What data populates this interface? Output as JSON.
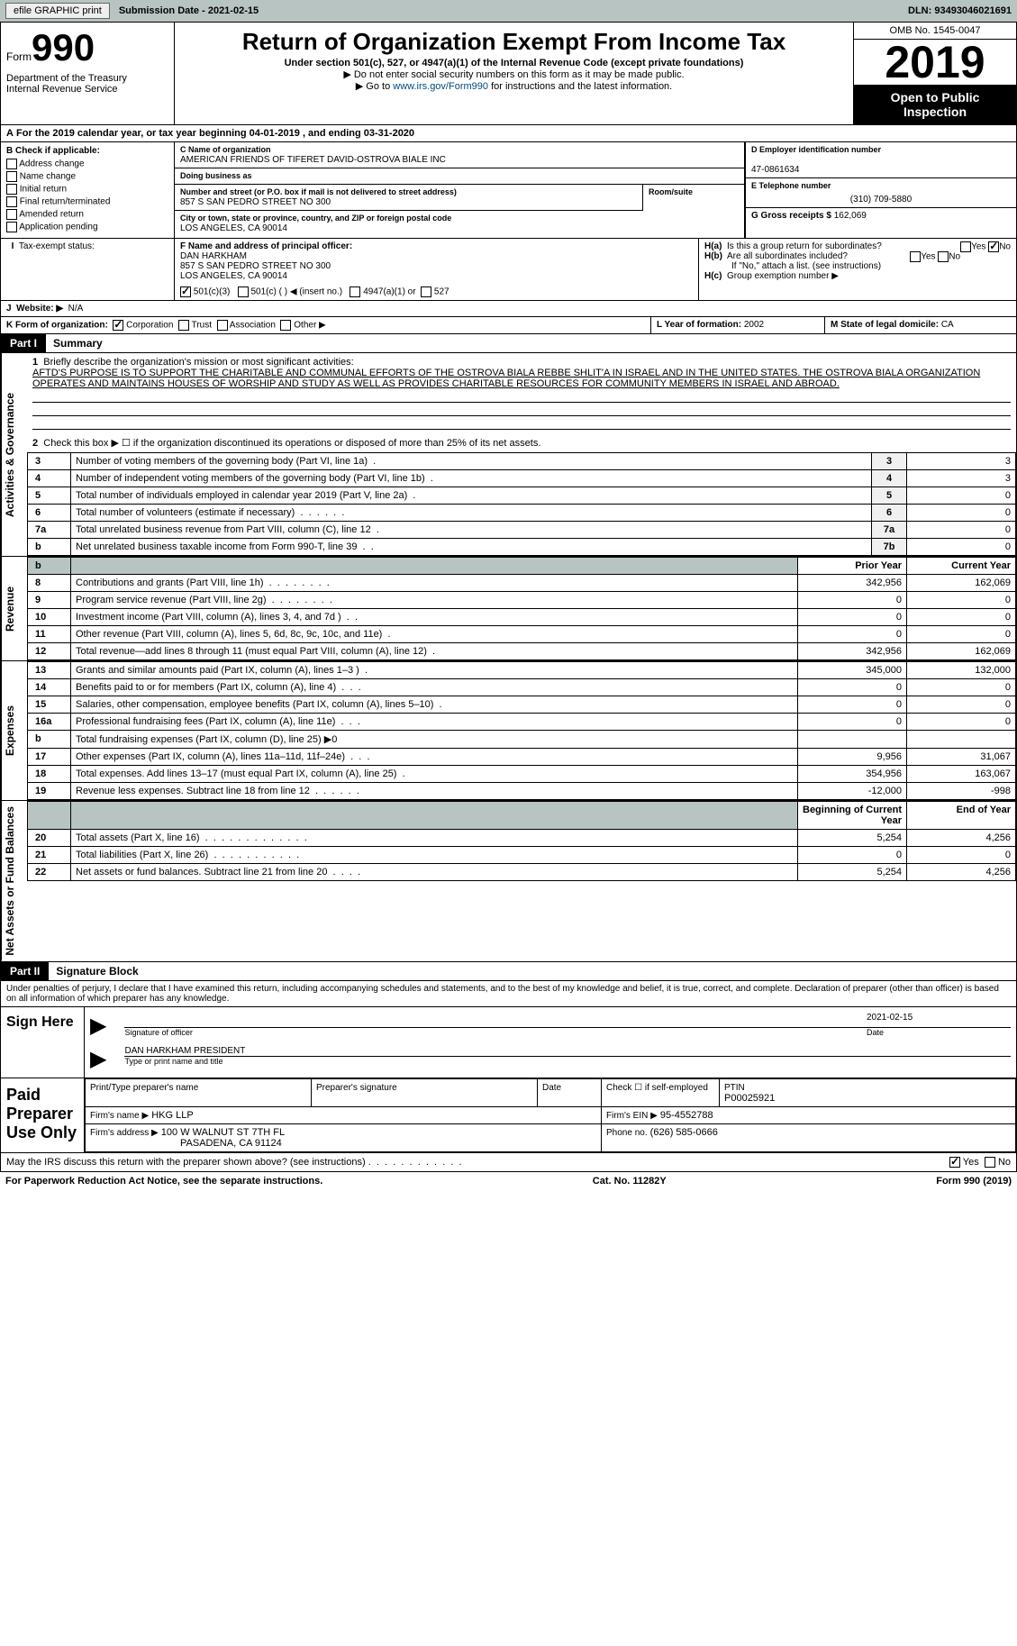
{
  "topbar": {
    "efile": "efile GRAPHIC print",
    "sub": "Submission Date - 2021-02-15",
    "dln": "DLN: 93493046021691"
  },
  "hdr": {
    "form": "Form",
    "num": "990",
    "dept": "Department of the Treasury\nInternal Revenue Service",
    "title": "Return of Organization Exempt From Income Tax",
    "sub": "Under section 501(c), 527, or 4947(a)(1) of the Internal Revenue Code (except private foundations)",
    "l1": "▶ Do not enter social security numbers on this form as it may be made public.",
    "l2_pre": "▶ Go to ",
    "l2_link": "www.irs.gov/Form990",
    "l2_post": " for instructions and the latest information.",
    "omb": "OMB No. 1545-0047",
    "year": "2019",
    "open": "Open to Public Inspection"
  },
  "rowA": "For the 2019 calendar year, or tax year beginning 04-01-2019     , and ending 03-31-2020",
  "boxB": {
    "lbl": "B Check if applicable:",
    "items": [
      "Address change",
      "Name change",
      "Initial return",
      "Final return/terminated",
      "Amended return",
      "Application pending"
    ]
  },
  "boxC": {
    "nameLbl": "C Name of organization",
    "name": "AMERICAN FRIENDS OF TIFERET DAVID-OSTROVA BIALE INC",
    "dbaLbl": "Doing business as",
    "addrLbl": "Number and street (or P.O. box if mail is not delivered to street address)",
    "roomLbl": "Room/suite",
    "addr": "857 S SAN PEDRO STREET NO 300",
    "cityLbl": "City or town, state or province, country, and ZIP or foreign postal code",
    "city": "LOS ANGELES, CA  90014"
  },
  "boxD": {
    "lbl": "D Employer identification number",
    "val": "47-0861634"
  },
  "boxE": {
    "lbl": "E Telephone number",
    "val": "(310) 709-5880"
  },
  "boxG": {
    "lbl": "G Gross receipts $",
    "val": "162,069"
  },
  "boxF": {
    "lbl": "F Name and address of principal officer:",
    "name": "DAN HARKHAM",
    "addr": "857 S SAN PEDRO STREET NO 300\nLOS ANGELES, CA  90014"
  },
  "boxH": {
    "a": "Is this a group return for subordinates?",
    "b": "Are all subordinates included?",
    "note": "If \"No,\" attach a list. (see instructions)",
    "c": "Group exemption number ▶",
    "yes": "Yes",
    "no": "No"
  },
  "rowI": {
    "lbl": "Tax-exempt status:",
    "opts": [
      "501(c)(3)",
      "501(c) (  ) ◀ (insert no.)",
      "4947(a)(1) or",
      "527"
    ]
  },
  "rowJ": {
    "lbl": "Website: ▶",
    "val": "N/A"
  },
  "rowK": {
    "lbl": "K Form of organization:",
    "opts": [
      "Corporation",
      "Trust",
      "Association",
      "Other ▶"
    ]
  },
  "rowL": {
    "lbl": "L Year of formation:",
    "val": "2002"
  },
  "rowM": {
    "lbl": "M State of legal domicile:",
    "val": "CA"
  },
  "part1": {
    "title": "Part I",
    "sub": "Summary",
    "q1": "Briefly describe the organization's mission or most significant activities:",
    "mission": "AFTD'S PURPOSE IS TO SUPPORT THE CHARITABLE AND COMMUNAL EFFORTS OF THE OSTROVA BIALA REBBE SHLIT'A IN ISRAEL AND IN THE UNITED STATES. THE OSTROVA BIALA ORGANIZATION OPERATES AND MAINTAINS HOUSES OF WORSHIP AND STUDY AS WELL AS PROVIDES CHARITABLE RESOURCES FOR COMMUNITY MEMBERS IN ISRAEL AND ABROAD.",
    "q2": "Check this box ▶ ☐  if the organization discontinued its operations or disposed of more than 25% of its net assets."
  },
  "sections": {
    "gov": "Activities & Governance",
    "rev": "Revenue",
    "exp": "Expenses",
    "net": "Net Assets or Fund Balances"
  },
  "govRows": [
    {
      "no": "3",
      "txt": "Number of voting members of the governing body (Part VI, line 1a)",
      "ln": "3",
      "val": "3"
    },
    {
      "no": "4",
      "txt": "Number of independent voting members of the governing body (Part VI, line 1b)",
      "ln": "4",
      "val": "3"
    },
    {
      "no": "5",
      "txt": "Total number of individuals employed in calendar year 2019 (Part V, line 2a)",
      "ln": "5",
      "val": "0"
    },
    {
      "no": "6",
      "txt": "Total number of volunteers (estimate if necessary)",
      "ln": "6",
      "val": "0"
    },
    {
      "no": "7a",
      "txt": "Total unrelated business revenue from Part VIII, column (C), line 12",
      "ln": "7a",
      "val": "0"
    },
    {
      "no": "b",
      "txt": "Net unrelated business taxable income from Form 990-T, line 39",
      "ln": "7b",
      "val": "0"
    }
  ],
  "hdrCols": {
    "prior": "Prior Year",
    "current": "Current Year",
    "beg": "Beginning of Current Year",
    "end": "End of Year"
  },
  "revRows": [
    {
      "no": "8",
      "txt": "Contributions and grants (Part VIII, line 1h)",
      "p": "342,956",
      "c": "162,069"
    },
    {
      "no": "9",
      "txt": "Program service revenue (Part VIII, line 2g)",
      "p": "0",
      "c": "0"
    },
    {
      "no": "10",
      "txt": "Investment income (Part VIII, column (A), lines 3, 4, and 7d )",
      "p": "0",
      "c": "0"
    },
    {
      "no": "11",
      "txt": "Other revenue (Part VIII, column (A), lines 5, 6d, 8c, 9c, 10c, and 11e)",
      "p": "0",
      "c": "0"
    },
    {
      "no": "12",
      "txt": "Total revenue—add lines 8 through 11 (must equal Part VIII, column (A), line 12)",
      "p": "342,956",
      "c": "162,069"
    }
  ],
  "expRows": [
    {
      "no": "13",
      "txt": "Grants and similar amounts paid (Part IX, column (A), lines 1–3 )",
      "p": "345,000",
      "c": "132,000"
    },
    {
      "no": "14",
      "txt": "Benefits paid to or for members (Part IX, column (A), line 4)",
      "p": "0",
      "c": "0"
    },
    {
      "no": "15",
      "txt": "Salaries, other compensation, employee benefits (Part IX, column (A), lines 5–10)",
      "p": "0",
      "c": "0"
    },
    {
      "no": "16a",
      "txt": "Professional fundraising fees (Part IX, column (A), line 11e)",
      "p": "0",
      "c": "0"
    },
    {
      "no": "b",
      "txt": "Total fundraising expenses (Part IX, column (D), line 25) ▶0",
      "p": "",
      "c": "",
      "gray": true
    },
    {
      "no": "17",
      "txt": "Other expenses (Part IX, column (A), lines 11a–11d, 11f–24e)",
      "p": "9,956",
      "c": "31,067"
    },
    {
      "no": "18",
      "txt": "Total expenses. Add lines 13–17 (must equal Part IX, column (A), line 25)",
      "p": "354,956",
      "c": "163,067"
    },
    {
      "no": "19",
      "txt": "Revenue less expenses. Subtract line 18 from line 12",
      "p": "-12,000",
      "c": "-998"
    }
  ],
  "netRows": [
    {
      "no": "20",
      "txt": "Total assets (Part X, line 16)",
      "p": "5,254",
      "c": "4,256"
    },
    {
      "no": "21",
      "txt": "Total liabilities (Part X, line 26)",
      "p": "0",
      "c": "0"
    },
    {
      "no": "22",
      "txt": "Net assets or fund balances. Subtract line 21 from line 20",
      "p": "5,254",
      "c": "4,256"
    }
  ],
  "part2": {
    "title": "Part II",
    "sub": "Signature Block",
    "decl": "Under penalties of perjury, I declare that I have examined this return, including accompanying schedules and statements, and to the best of my knowledge and belief, it is true, correct, and complete. Declaration of preparer (other than officer) is based on all information of which preparer has any knowledge."
  },
  "sign": {
    "here": "Sign Here",
    "sigLbl": "Signature of officer",
    "dateLbl": "Date",
    "date": "2021-02-15",
    "name": "DAN HARKHAM PRESIDENT",
    "nameLbl": "Type or print name and title"
  },
  "prep": {
    "title": "Paid Preparer Use Only",
    "c1": "Print/Type preparer's name",
    "c2": "Preparer's signature",
    "c3": "Date",
    "c4": "Check ☐ if self-employed",
    "c5": "PTIN",
    "ptin": "P00025921",
    "firmLbl": "Firm's name  ▶",
    "firm": "HKG LLP",
    "einLbl": "Firm's EIN ▶",
    "ein": "95-4552788",
    "addrLbl": "Firm's address ▶",
    "addr": "100 W WALNUT ST 7TH FL",
    "city": "PASADENA, CA  91124",
    "phLbl": "Phone no.",
    "ph": "(626) 585-0666"
  },
  "discuss": "May the IRS discuss this return with the preparer shown above? (see instructions)",
  "ftr": {
    "l": "For Paperwork Reduction Act Notice, see the separate instructions.",
    "c": "Cat. No. 11282Y",
    "r": "Form 990 (2019)"
  }
}
